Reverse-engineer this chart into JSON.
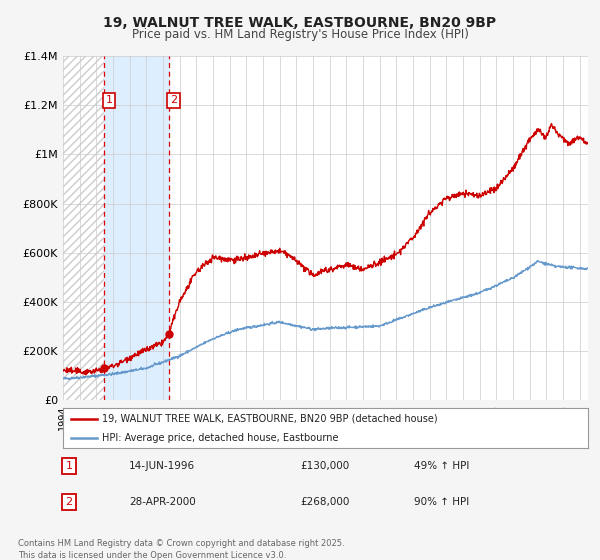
{
  "title": "19, WALNUT TREE WALK, EASTBOURNE, BN20 9BP",
  "subtitle": "Price paid vs. HM Land Registry's House Price Index (HPI)",
  "legend_label_red": "19, WALNUT TREE WALK, EASTBOURNE, BN20 9BP (detached house)",
  "legend_label_blue": "HPI: Average price, detached house, Eastbourne",
  "footer": "Contains HM Land Registry data © Crown copyright and database right 2025.\nThis data is licensed under the Open Government Licence v3.0.",
  "sale1_date": "14-JUN-1996",
  "sale1_price": "£130,000",
  "sale1_hpi": "49% ↑ HPI",
  "sale1_year": 1996.45,
  "sale1_value": 130000,
  "sale2_date": "28-APR-2000",
  "sale2_price": "£268,000",
  "sale2_hpi": "90% ↑ HPI",
  "sale2_year": 2000.33,
  "sale2_value": 268000,
  "xmin": 1994.0,
  "xmax": 2025.5,
  "ymin": 0,
  "ymax": 1400000,
  "yticks": [
    0,
    200000,
    400000,
    600000,
    800000,
    1000000,
    1200000,
    1400000
  ],
  "ytick_labels": [
    "£0",
    "£200K",
    "£400K",
    "£600K",
    "£800K",
    "£1M",
    "£1.2M",
    "£1.4M"
  ],
  "background_color": "#f5f5f5",
  "plot_bg_color": "#ffffff",
  "red_color": "#cc0000",
  "blue_color": "#6699cc",
  "shade_color": "#ddeeff",
  "vline_color": "#dd0000",
  "grid_color": "#cccccc",
  "hatch_color": "#cccccc"
}
